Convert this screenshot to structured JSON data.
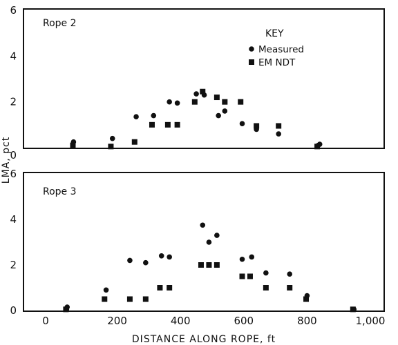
{
  "chart_data": {
    "type": "scatter",
    "xlabel": "DISTANCE ALONG ROPE, ft",
    "ylabel": "LMA, pct",
    "xlim": [
      0,
      1000
    ],
    "ylim": [
      0,
      6
    ],
    "x_ticks": [
      "0",
      "200",
      "400",
      "600",
      "800",
      "1,000"
    ],
    "y_ticks": [
      "0",
      "2",
      "4",
      "6"
    ],
    "legend": {
      "title": "KEY",
      "placement": "top-right of upper panel",
      "entries": [
        {
          "label": "Measured",
          "marker": "circle"
        },
        {
          "label": "EM NDT",
          "marker": "square"
        }
      ]
    },
    "panels": [
      {
        "title": "Rope 2",
        "series": [
          {
            "name": "Measured",
            "marker": "circle",
            "points": [
              [
                60,
                0.15
              ],
              [
                62,
                0.25
              ],
              [
                185,
                0.4
              ],
              [
                260,
                1.35
              ],
              [
                315,
                1.4
              ],
              [
                365,
                2.0
              ],
              [
                390,
                1.95
              ],
              [
                450,
                2.35
              ],
              [
                470,
                2.45
              ],
              [
                475,
                2.3
              ],
              [
                520,
                1.4
              ],
              [
                540,
                1.6
              ],
              [
                595,
                1.05
              ],
              [
                640,
                0.8
              ],
              [
                710,
                0.6
              ],
              [
                835,
                0.1
              ],
              [
                840,
                0.15
              ]
            ]
          },
          {
            "name": "EM NDT",
            "marker": "square",
            "points": [
              [
                60,
                0.1
              ],
              [
                180,
                0.05
              ],
              [
                255,
                0.25
              ],
              [
                310,
                1.0
              ],
              [
                360,
                1.0
              ],
              [
                390,
                1.0
              ],
              [
                445,
                2.0
              ],
              [
                470,
                2.45
              ],
              [
                515,
                2.2
              ],
              [
                540,
                2.0
              ],
              [
                590,
                2.0
              ],
              [
                640,
                0.95
              ],
              [
                710,
                0.95
              ],
              [
                832,
                0.05
              ]
            ]
          }
        ]
      },
      {
        "title": "Rope 3",
        "series": [
          {
            "name": "Measured",
            "marker": "circle",
            "points": [
              [
                40,
                0.05
              ],
              [
                42,
                0.15
              ],
              [
                165,
                0.9
              ],
              [
                240,
                2.2
              ],
              [
                290,
                2.1
              ],
              [
                340,
                2.4
              ],
              [
                365,
                2.35
              ],
              [
                470,
                3.75
              ],
              [
                490,
                3.0
              ],
              [
                515,
                3.3
              ],
              [
                595,
                2.25
              ],
              [
                625,
                2.35
              ],
              [
                670,
                1.65
              ],
              [
                745,
                1.6
              ],
              [
                800,
                0.65
              ],
              [
                948,
                0.05
              ]
            ]
          },
          {
            "name": "EM NDT",
            "marker": "square",
            "points": [
              [
                38,
                0.05
              ],
              [
                160,
                0.5
              ],
              [
                240,
                0.5
              ],
              [
                290,
                0.5
              ],
              [
                335,
                1.0
              ],
              [
                365,
                1.0
              ],
              [
                465,
                2.0
              ],
              [
                490,
                2.0
              ],
              [
                515,
                2.0
              ],
              [
                595,
                1.5
              ],
              [
                620,
                1.5
              ],
              [
                670,
                1.0
              ],
              [
                745,
                1.0
              ],
              [
                797,
                0.5
              ],
              [
                945,
                0.05
              ]
            ]
          }
        ]
      }
    ],
    "grid": false
  }
}
